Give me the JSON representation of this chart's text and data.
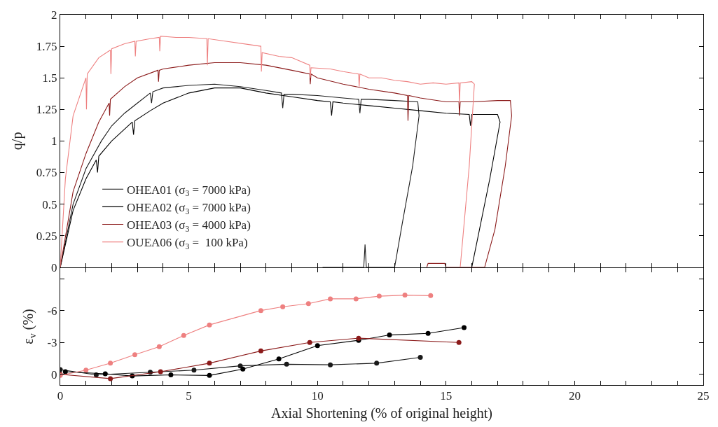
{
  "chart_data": [
    {
      "type": "line",
      "ylabel": "q/p",
      "xlim": [
        0,
        25
      ],
      "ylim": [
        0,
        2
      ],
      "xticks": [
        {
          "value": 0,
          "label": null
        },
        {
          "value": 1,
          "label": null
        },
        {
          "value": 2,
          "label": null
        },
        {
          "value": 3,
          "label": null
        },
        {
          "value": 4,
          "label": null
        },
        {
          "value": 5,
          "label": null
        },
        {
          "value": 6,
          "label": null
        },
        {
          "value": 7,
          "label": null
        },
        {
          "value": 8,
          "label": null
        },
        {
          "value": 9,
          "label": null
        },
        {
          "value": 10,
          "label": null
        },
        {
          "value": 11,
          "label": null
        },
        {
          "value": 12,
          "label": null
        },
        {
          "value": 13,
          "label": null
        },
        {
          "value": 14,
          "label": null
        },
        {
          "value": 15,
          "label": null
        },
        {
          "value": 16,
          "label": null
        },
        {
          "value": 17,
          "label": null
        },
        {
          "value": 18,
          "label": null
        },
        {
          "value": 19,
          "label": null
        },
        {
          "value": 20,
          "label": null
        },
        {
          "value": 21,
          "label": null
        },
        {
          "value": 22,
          "label": null
        },
        {
          "value": 23,
          "label": null
        },
        {
          "value": 24,
          "label": null
        },
        {
          "value": 25,
          "label": null
        }
      ],
      "yticks": [
        0,
        0.25,
        0.5,
        0.75,
        1,
        1.25,
        1.5,
        1.75,
        2
      ],
      "tick_labels": "y",
      "legend": "bottom left",
      "marker": "none",
      "series": [
        {
          "name": "OHEA01 (σ$_{3}$ = 7000 kPa)",
          "color": "#1a1a1a",
          "x": [
            0,
            0.5,
            1,
            1.6,
            2,
            2.5,
            3,
            3.5,
            3.55,
            3.6,
            4,
            5,
            6,
            7,
            8,
            8.6,
            8.65,
            8.7,
            9,
            10,
            11,
            11.6,
            11.65,
            11.7,
            12,
            13,
            13.9,
            13.95,
            13.7,
            13.3,
            13.0,
            12.2,
            11.9,
            11.85,
            11.8,
            10.2
          ],
          "values": [
            0,
            0.5,
            0.78,
            1.0,
            1.12,
            1.22,
            1.3,
            1.38,
            1.3,
            1.39,
            1.42,
            1.44,
            1.45,
            1.43,
            1.4,
            1.38,
            1.26,
            1.37,
            1.37,
            1.36,
            1.34,
            1.33,
            1.22,
            1.33,
            1.33,
            1.32,
            1.31,
            1.2,
            0.8,
            0.35,
            0,
            0,
            0,
            0.18,
            0,
            0
          ]
        },
        {
          "name": "OHEA02 (σ$_{3}$ = 7000 kPa)",
          "color": "#000000",
          "x": [
            0,
            0.5,
            1,
            1.4,
            1.45,
            1.5,
            2,
            2.8,
            2.85,
            2.9,
            3.5,
            4,
            5,
            6,
            7,
            8,
            9,
            10,
            10.5,
            10.55,
            10.6,
            11,
            12,
            13,
            14,
            15,
            15.9,
            15.95,
            16,
            16.5,
            17,
            17.1,
            16.7,
            16.3,
            16.0
          ],
          "values": [
            0,
            0.45,
            0.7,
            0.85,
            0.75,
            0.88,
            1.0,
            1.15,
            1.05,
            1.16,
            1.24,
            1.3,
            1.38,
            1.42,
            1.42,
            1.38,
            1.35,
            1.32,
            1.31,
            1.2,
            1.31,
            1.3,
            1.28,
            1.26,
            1.24,
            1.22,
            1.21,
            1.12,
            1.21,
            1.21,
            1.21,
            1.15,
            0.7,
            0.3,
            0
          ]
        },
        {
          "name": "OHEA03 (σ$_{3}$ = 4000 kPa)",
          "color": "#8b1a1a",
          "x": [
            0,
            0.5,
            1,
            1.5,
            1.9,
            1.92,
            1.95,
            2.5,
            3,
            3.8,
            3.82,
            3.85,
            4,
            5,
            6,
            7,
            8,
            9,
            9.7,
            9.72,
            9.75,
            10,
            11,
            12,
            13,
            13.5,
            13.52,
            13.55,
            14,
            15,
            15.5,
            15.52,
            15.55,
            16,
            17,
            17.5,
            17.55,
            17.3,
            16.9,
            16.5,
            15.0,
            14.95,
            14.3,
            14.25
          ],
          "values": [
            0,
            0.6,
            0.9,
            1.15,
            1.3,
            1.2,
            1.33,
            1.43,
            1.5,
            1.56,
            1.47,
            1.56,
            1.57,
            1.6,
            1.62,
            1.62,
            1.6,
            1.56,
            1.53,
            1.45,
            1.53,
            1.5,
            1.45,
            1.41,
            1.38,
            1.36,
            1.16,
            1.36,
            1.34,
            1.31,
            1.31,
            1.2,
            1.31,
            1.31,
            1.32,
            1.32,
            1.2,
            0.8,
            0.3,
            0,
            0,
            0.03,
            0.03,
            0
          ]
        },
        {
          "name": "OUEA06 (σ$_{3}$ =  100 kPa)",
          "color": "#ee8080",
          "x": [
            0,
            0.2,
            0.5,
            1,
            1.02,
            1.05,
            1.5,
            1.95,
            1.97,
            2.0,
            2.5,
            2.9,
            2.92,
            2.95,
            3.5,
            3.85,
            3.87,
            3.9,
            4.5,
            5,
            5.7,
            5.72,
            5.75,
            7.8,
            7.82,
            7.85,
            8.5,
            9,
            9.7,
            9.72,
            9.75,
            10.5,
            11,
            11.6,
            11.62,
            11.65,
            12,
            12.5,
            13,
            13.5,
            14,
            14.5,
            15,
            15.5,
            15.52,
            15.55,
            16.0,
            16.1,
            15.9,
            15.55
          ],
          "values": [
            0,
            0.7,
            1.2,
            1.5,
            1.25,
            1.53,
            1.66,
            1.72,
            1.53,
            1.73,
            1.77,
            1.79,
            1.67,
            1.79,
            1.81,
            1.82,
            1.71,
            1.83,
            1.82,
            1.82,
            1.81,
            1.6,
            1.81,
            1.75,
            1.55,
            1.7,
            1.67,
            1.66,
            1.6,
            1.5,
            1.58,
            1.57,
            1.55,
            1.53,
            1.43,
            1.53,
            1.5,
            1.5,
            1.48,
            1.47,
            1.45,
            1.46,
            1.45,
            1.46,
            1.3,
            1.46,
            1.47,
            1.45,
            0.8,
            0
          ]
        }
      ]
    },
    {
      "type": "line",
      "xlabel": "Axial Shortening (% of original height)",
      "ylabel": "ε$_{v}$ (%)",
      "xlim": [
        0,
        25
      ],
      "ylim": [
        1,
        -10
      ],
      "xticks": [
        0,
        {
          "value": 1,
          "label": null
        },
        {
          "value": 2,
          "label": null
        },
        {
          "value": 3,
          "label": null
        },
        {
          "value": 4,
          "label": null
        },
        5,
        {
          "value": 6,
          "label": null
        },
        {
          "value": 7,
          "label": null
        },
        {
          "value": 8,
          "label": null
        },
        {
          "value": 9,
          "label": null
        },
        10,
        {
          "value": 11,
          "label": null
        },
        {
          "value": 12,
          "label": null
        },
        {
          "value": 13,
          "label": null
        },
        {
          "value": 14,
          "label": null
        },
        15,
        {
          "value": 16,
          "label": null
        },
        {
          "value": 17,
          "label": null
        },
        {
          "value": 18,
          "label": null
        },
        {
          "value": 19,
          "label": null
        },
        20,
        {
          "value": 21,
          "label": null
        },
        {
          "value": 22,
          "label": null
        },
        {
          "value": 23,
          "label": null
        },
        {
          "value": 24,
          "label": null
        },
        25
      ],
      "yticks": [
        0,
        -3,
        -6,
        {
          "value": -9,
          "label": null
        }
      ],
      "marker": "circle",
      "series": [
        {
          "color": "#1a1a1a",
          "x": [
            0,
            1.4,
            3.5,
            5.2,
            7.0,
            8.8,
            10.5,
            12.3,
            14.0
          ],
          "values": [
            -0.45,
            0.05,
            -0.2,
            -0.4,
            -0.8,
            -0.95,
            -0.9,
            -1.05,
            -1.6
          ]
        },
        {
          "color": "#000000",
          "x": [
            0.2,
            1.75,
            2.8,
            4.3,
            5.8,
            7.1,
            8.5,
            10.0,
            11.6,
            12.8,
            14.3,
            15.7
          ],
          "values": [
            -0.25,
            -0.05,
            0.15,
            0.05,
            0.1,
            -0.5,
            -1.45,
            -2.7,
            -3.2,
            -3.7,
            -3.85,
            -4.4
          ]
        },
        {
          "color": "#8b1a1a",
          "x": [
            0,
            1.95,
            3.9,
            5.8,
            7.8,
            9.7,
            11.6,
            15.5
          ],
          "values": [
            0,
            0.4,
            -0.25,
            -1.05,
            -2.2,
            -3.0,
            -3.4,
            -3.0
          ]
        },
        {
          "color": "#ee8080",
          "x": [
            0,
            1.0,
            1.95,
            2.9,
            3.85,
            4.8,
            5.8,
            7.8,
            8.65,
            9.65,
            10.5,
            11.5,
            12.4,
            13.4,
            14.4
          ],
          "values": [
            0.1,
            -0.4,
            -1.05,
            -1.85,
            -2.6,
            -3.65,
            -4.65,
            -6.0,
            -6.35,
            -6.65,
            -7.1,
            -7.1,
            -7.35,
            -7.45,
            -7.4
          ]
        }
      ]
    }
  ]
}
